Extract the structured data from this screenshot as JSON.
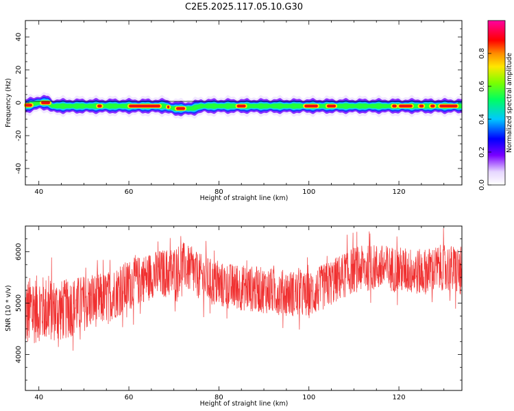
{
  "figure": {
    "title": "C2E5.2025.117.05.10.G30"
  },
  "chart_data": [
    {
      "type": "heatmap",
      "xlabel": "Height of straight line (km)",
      "ylabel": "Frequency (Hz)",
      "xlim": [
        37,
        134
      ],
      "ylim": [
        -50,
        50
      ],
      "xticks": [
        40,
        60,
        80,
        100,
        120
      ],
      "yticks": [
        40,
        20,
        0,
        -20,
        -40
      ],
      "horizontal_reference_line": 0,
      "colorbar": {
        "label": "Normalized spectral amplitude",
        "range": [
          0.0,
          1.0
        ],
        "ticks": [
          "0.0",
          "0.2",
          "0.4",
          "0.6",
          "0.8"
        ],
        "colormap": "rainbow (white → purple → blue → cyan → green → yellow → orange → red → magenta)"
      },
      "band_center_hz": [
        {
          "x": 37,
          "y": -2
        },
        {
          "x": 40,
          "y": 0
        },
        {
          "x": 42,
          "y": 0
        },
        {
          "x": 43,
          "y": -2
        },
        {
          "x": 68,
          "y": -2
        },
        {
          "x": 70,
          "y": -3.5
        },
        {
          "x": 74,
          "y": -3.5
        },
        {
          "x": 76,
          "y": -2
        },
        {
          "x": 133,
          "y": -2
        }
      ],
      "band_width_hz": 2.5,
      "peak_segments_km": [
        [
          37,
          38.5
        ],
        [
          40.5,
          42.5
        ],
        [
          53,
          54
        ],
        [
          60,
          67
        ],
        [
          68.5,
          69
        ],
        [
          70.5,
          72.5
        ],
        [
          84,
          86
        ],
        [
          99,
          102
        ],
        [
          104,
          106
        ],
        [
          118.5,
          119.5
        ],
        [
          120,
          123
        ],
        [
          124.5,
          125.5
        ],
        [
          127,
          128
        ],
        [
          129,
          133
        ]
      ]
    },
    {
      "type": "line",
      "xlabel": "Height of straight line (km)",
      "ylabel": "SNR (10 * v/v)",
      "xlim": [
        37,
        134
      ],
      "ylim": [
        3300,
        6500
      ],
      "xticks": [
        40,
        60,
        80,
        100,
        120
      ],
      "yticks": [
        6000,
        5000,
        4000
      ],
      "color": "#f03030",
      "series": [
        {
          "x": [
            37,
            40,
            45,
            50,
            55,
            60,
            65,
            70,
            72,
            75,
            80,
            85,
            90,
            95,
            100,
            105,
            110,
            115,
            120,
            125,
            130,
            134
          ],
          "y": [
            4800,
            4900,
            4850,
            5000,
            5100,
            5350,
            5550,
            5600,
            5750,
            5550,
            5350,
            5300,
            5250,
            5200,
            5150,
            5400,
            5650,
            5700,
            5650,
            5600,
            5700,
            5600
          ],
          "noise_amplitude": [
            700,
            650,
            600,
            550,
            500,
            500,
            450,
            500,
            450,
            450,
            450,
            450,
            450,
            450,
            450,
            450,
            450,
            450,
            450,
            450,
            450,
            500
          ]
        }
      ]
    }
  ]
}
